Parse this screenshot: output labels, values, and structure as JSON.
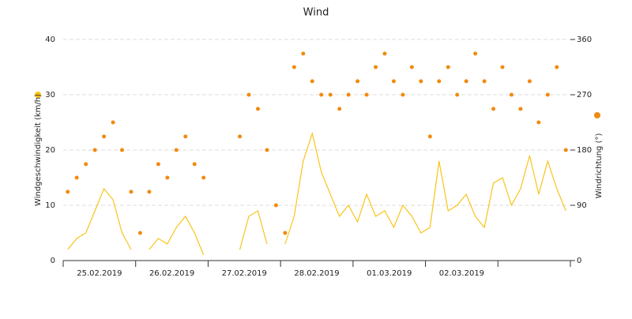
{
  "chart_data": {
    "type": "line-scatter",
    "title": "Wind",
    "y_label": "Windgeschwindigkeit (km/h)",
    "y2_label": "Windrichtung (°)",
    "categories": [
      null,
      null,
      null,
      null,
      "25.02.2019",
      null,
      null,
      null,
      null,
      null,
      null,
      null,
      "26.02.2019",
      null,
      null,
      null,
      null,
      null,
      null,
      null,
      "27.02.2019",
      null,
      null,
      null,
      null,
      null,
      null,
      null,
      "28.02.2019",
      null,
      null,
      null,
      null,
      null,
      null,
      null,
      "01.03.2019",
      null,
      null,
      null,
      null,
      null,
      null,
      null,
      "02.03.2019",
      null,
      null,
      null,
      null,
      null,
      null,
      null,
      null,
      null,
      null,
      null
    ],
    "series": [
      {
        "type": "line",
        "color": "#f9c31a",
        "values": [
          2,
          4,
          5,
          9,
          13,
          11,
          5,
          2,
          null,
          2,
          4,
          3,
          6,
          8,
          5,
          1,
          null,
          null,
          null,
          2,
          8,
          9,
          3,
          null,
          3,
          8,
          18,
          23,
          16,
          12,
          8,
          10,
          7,
          12,
          8,
          9,
          6,
          10,
          8,
          5,
          6,
          18,
          9,
          10,
          12,
          8,
          6,
          14,
          15,
          10,
          13,
          19,
          12,
          18,
          13,
          9
        ]
      },
      {
        "type": "scatter",
        "axis": "y2",
        "color": "#f28a0f",
        "values": [
          112,
          135,
          157,
          180,
          202,
          225,
          180,
          112,
          45,
          112,
          157,
          135,
          180,
          202,
          157,
          135,
          null,
          null,
          null,
          202,
          270,
          247,
          180,
          90,
          45,
          315,
          337,
          292,
          270,
          270,
          247,
          270,
          292,
          270,
          315,
          337,
          292,
          270,
          315,
          292,
          202,
          292,
          315,
          270,
          292,
          337,
          292,
          247,
          315,
          270,
          247,
          292,
          225,
          270,
          315,
          180
        ]
      }
    ],
    "ylim": [
      0,
      40
    ],
    "yticks": [
      0,
      10,
      20,
      30,
      40
    ],
    "y2lim": [
      0,
      360
    ],
    "y2ticks": [
      0,
      90,
      180,
      270,
      360
    ],
    "grid": true
  }
}
